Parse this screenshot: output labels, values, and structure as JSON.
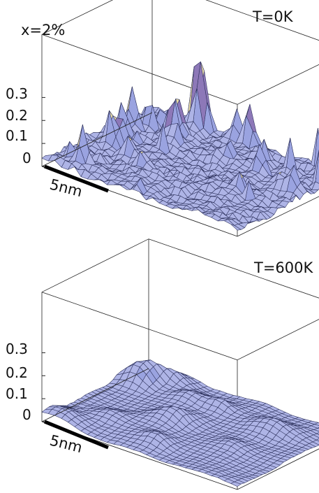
{
  "chart_data": [
    {
      "type": "surface",
      "title": "",
      "annotations": [
        "x=2%",
        "T=0K"
      ],
      "zlim": [
        0,
        0.3
      ],
      "z_ticks": [
        "0",
        "0.1",
        "0.2",
        "0.3"
      ],
      "scale_bar": "5nm",
      "grid": true,
      "surface_color": "#aeb4e6",
      "mesh_color": "#2b2f5a",
      "description_peaks": "many sharp spikes up to ~0.3 along back and left edges"
    },
    {
      "type": "surface",
      "title": "",
      "annotations": [
        "T=600K"
      ],
      "zlim": [
        0,
        0.3
      ],
      "z_ticks": [
        "0",
        "0.1",
        "0.2",
        "0.3"
      ],
      "scale_bar": "5nm",
      "grid": true,
      "surface_color": "#aeb4e6",
      "mesh_color": "#2b2f5a"
    }
  ]
}
